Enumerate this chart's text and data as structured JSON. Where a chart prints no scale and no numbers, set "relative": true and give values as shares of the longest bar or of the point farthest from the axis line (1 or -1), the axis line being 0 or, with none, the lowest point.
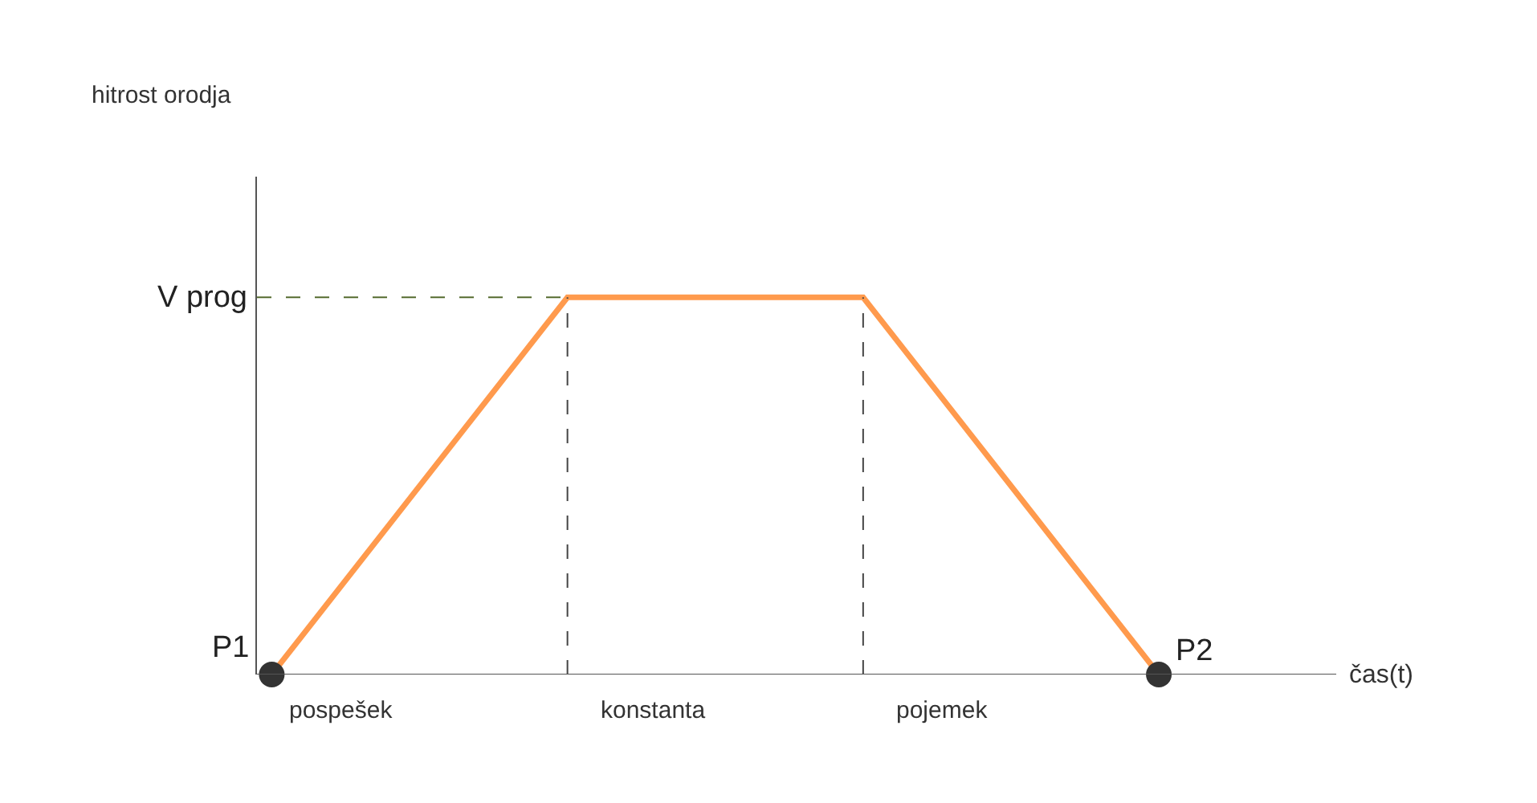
{
  "chart_data": {
    "type": "line",
    "relative": true,
    "xlabel": "čas(t)",
    "categories": [
      null,
      null,
      null,
      null
    ],
    "series": [
      {
        "color": "#ff9a4d",
        "values": [
          0,
          1,
          1,
          0
        ]
      }
    ],
    "ref_lines": [
      {
        "axis": "y",
        "value": 1,
        "label": "V prog",
        "line_style": "dashed",
        "color": "#556b2f"
      }
    ],
    "annotations": [
      "P1",
      "P2",
      "pospešek",
      "konstanta",
      "pojemek",
      "hitrost orodja"
    ],
    "line_style": "solid"
  }
}
